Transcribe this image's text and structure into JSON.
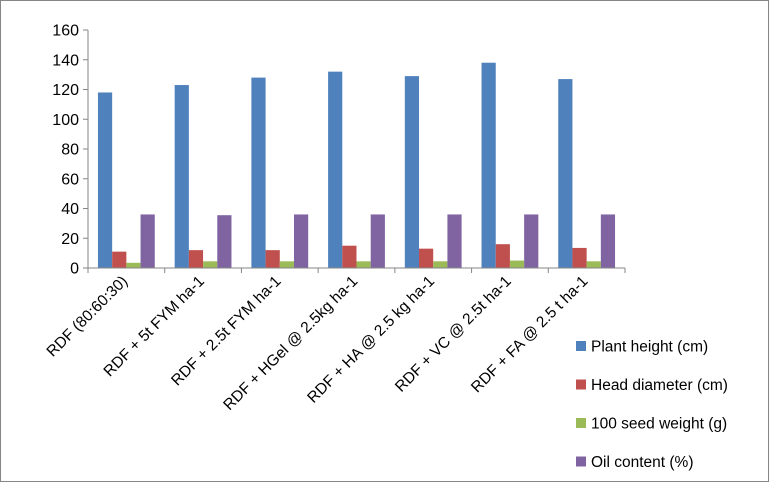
{
  "chart_data": {
    "type": "bar",
    "title": "",
    "xlabel": "",
    "ylabel": "",
    "ylim": [
      0,
      160
    ],
    "yticks": [
      0,
      20,
      40,
      60,
      80,
      100,
      120,
      140,
      160
    ],
    "grid": false,
    "legend": "right",
    "categories": [
      "RDF (80:60:30)",
      "RDF + 5t FYM ha-1",
      "RDF + 2.5t FYM ha-1",
      "RDF + HGel @ 2.5kg ha-1",
      "RDF + HA @ 2.5 kg ha-1",
      "RDF + VC @ 2.5t ha-1",
      "RDF + FA @ 2.5 t ha-1"
    ],
    "series": [
      {
        "name": "Plant height (cm)",
        "color": "#4f81bd",
        "values": [
          118,
          123,
          128,
          132,
          129,
          138,
          127
        ]
      },
      {
        "name": "Head diameter (cm)",
        "color": "#c0504d",
        "values": [
          11,
          12,
          12,
          15,
          13,
          16,
          13.5
        ]
      },
      {
        "name": "100 seed weight (g)",
        "color": "#9bbb59",
        "values": [
          3.5,
          4.5,
          4.5,
          4.5,
          4.5,
          5,
          4.5
        ]
      },
      {
        "name": "Oil content (%)",
        "color": "#8064a2",
        "values": [
          36,
          35.5,
          36,
          36,
          36,
          36,
          36
        ]
      }
    ]
  }
}
